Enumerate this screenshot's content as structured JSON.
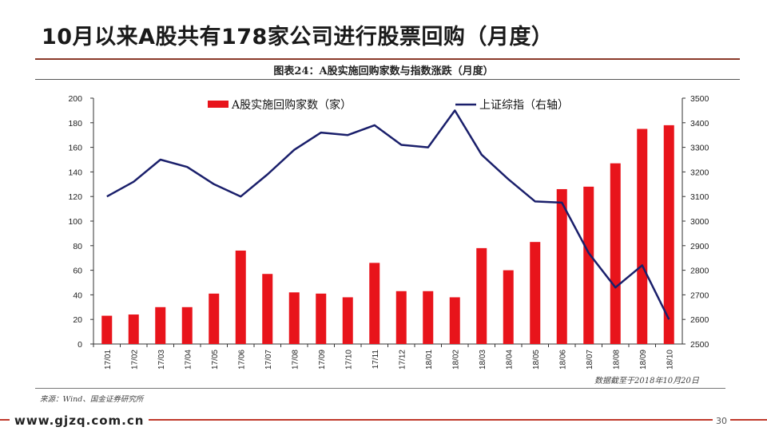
{
  "page": {
    "title": "10月以来A股共有178家公司进行股票回购（月度）",
    "chart_heading": "图表24：A股实施回购家数与指数涨跌（月度）",
    "cutoff_note": "数据截至于2018年10月20日",
    "source_note": "来源：Wind、国金证券研究所",
    "footer_url": "www.gjzq.com.cn",
    "page_number": "30"
  },
  "colors": {
    "bar": "#e8141b",
    "line": "#1a1f6b",
    "accent_rule": "#8a3a2a",
    "footer_rule": "#c0392b"
  },
  "chart_data": {
    "type": "bar",
    "title": "图表24：A股实施回购家数与指数涨跌（月度）",
    "categories": [
      "17/01",
      "17/02",
      "17/03",
      "17/04",
      "17/05",
      "17/06",
      "17/07",
      "17/08",
      "17/09",
      "17/10",
      "17/11",
      "17/12",
      "18/01",
      "18/02",
      "18/03",
      "18/04",
      "18/05",
      "18/06",
      "18/07",
      "18/08",
      "18/09",
      "18/10"
    ],
    "series": [
      {
        "name": "A股实施回购家数（家）",
        "type": "bar",
        "axis": "left",
        "values": [
          23,
          24,
          30,
          30,
          41,
          76,
          57,
          42,
          41,
          38,
          66,
          43,
          43,
          38,
          78,
          60,
          83,
          126,
          128,
          147,
          175,
          178
        ]
      },
      {
        "name": "上证综指（右轴）",
        "type": "line",
        "axis": "right",
        "values": [
          3100,
          3160,
          3250,
          3220,
          3150,
          3100,
          3190,
          3290,
          3360,
          3350,
          3390,
          3310,
          3300,
          3450,
          3270,
          3170,
          3080,
          3075,
          2870,
          2730,
          2820,
          2600
        ]
      }
    ],
    "y_left": {
      "min": 0,
      "max": 200,
      "step": 20,
      "ticks": [
        "0",
        "20",
        "40",
        "60",
        "80",
        "100",
        "120",
        "140",
        "160",
        "180",
        "200"
      ]
    },
    "y_right": {
      "min": 2500,
      "max": 3500,
      "step": 100,
      "ticks": [
        "2500",
        "2600",
        "2700",
        "2800",
        "2900",
        "3000",
        "3100",
        "3200",
        "3300",
        "3400",
        "3500"
      ]
    },
    "legend": [
      "A股实施回购家数（家）",
      "上证综指（右轴）"
    ],
    "legend_position": "top",
    "grid": false
  }
}
